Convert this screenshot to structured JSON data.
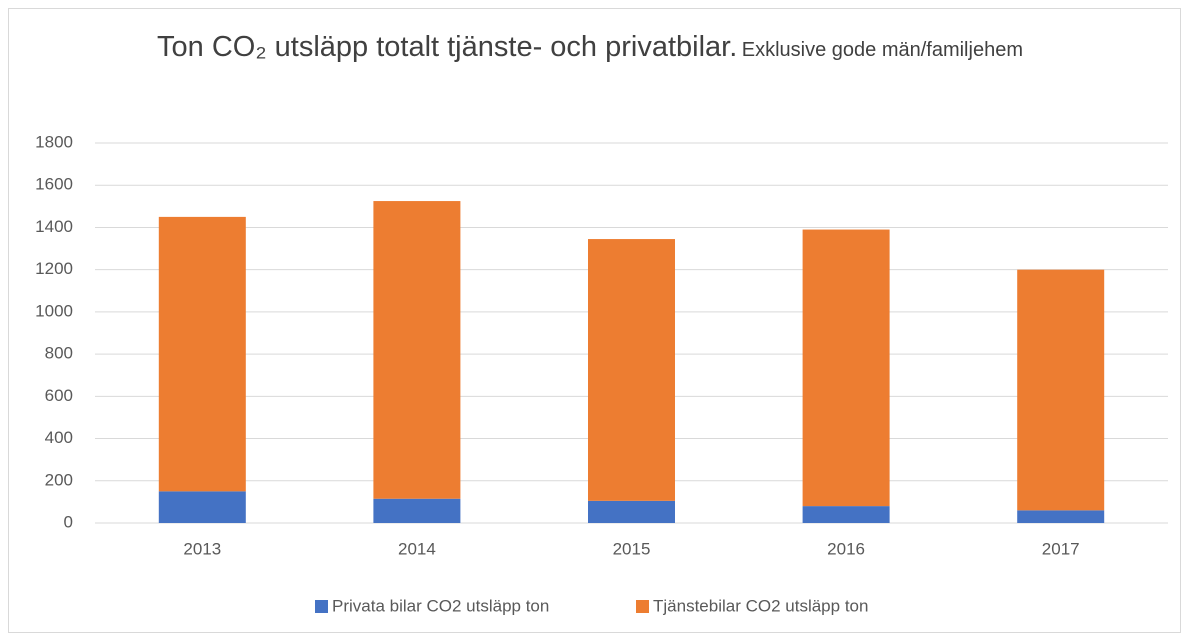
{
  "chart_data": {
    "type": "stacked_bar",
    "title": "Ton CO₂ utsläpp totalt tjänste- och privatbilar.",
    "subtitle": "Exklusive gode män/familjehem",
    "categories": [
      "2013",
      "2014",
      "2015",
      "2016",
      "2017"
    ],
    "series": [
      {
        "name": "Privata bilar CO2 utsläpp ton",
        "color": "#4472c4",
        "values": [
          150,
          115,
          105,
          80,
          60
        ]
      },
      {
        "name": "Tjänstebilar CO2 utsläpp ton",
        "color": "#ed7d31",
        "values": [
          1300,
          1410,
          1240,
          1310,
          1140
        ]
      }
    ],
    "ylim": [
      0,
      1800
    ],
    "yticks": [
      0,
      200,
      400,
      600,
      800,
      1000,
      1200,
      1400,
      1600,
      1800
    ],
    "grid": true,
    "legend": "bottom"
  }
}
